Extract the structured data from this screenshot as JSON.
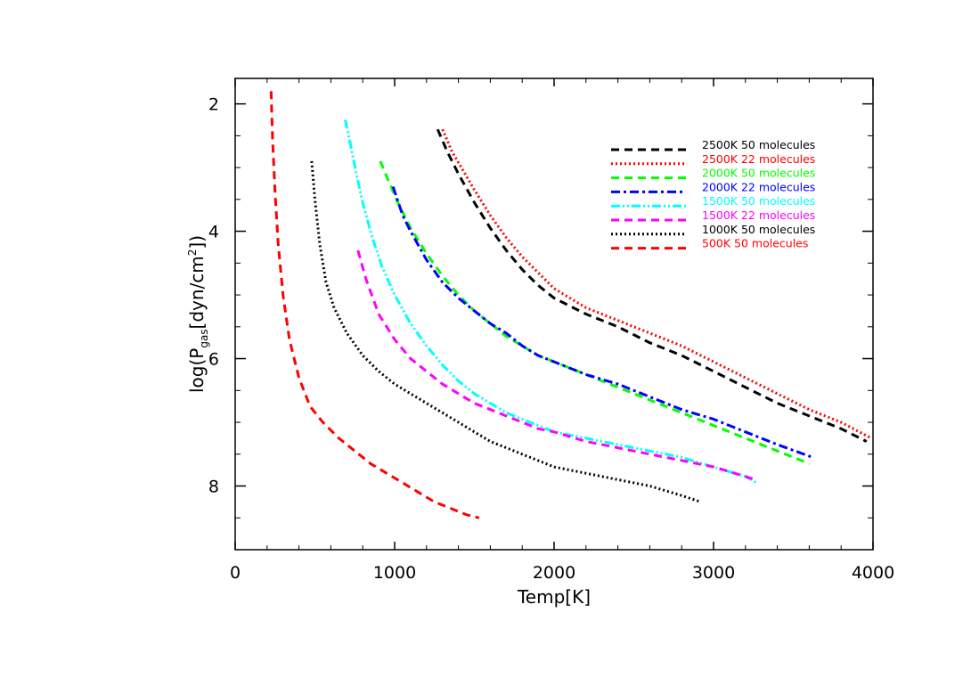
{
  "chart_data": {
    "type": "line",
    "title": "",
    "xlabel": "Temp[K]",
    "ylabel": {
      "prefix": "log(P",
      "subscript": "gas",
      "middle": "[dyn/cm",
      "superscript": "2",
      "suffix": "])"
    },
    "xlim": [
      0,
      4000
    ],
    "ylim": [
      9,
      1.6
    ],
    "y_inverted": true,
    "xticks": [
      0,
      1000,
      2000,
      3000,
      4000
    ],
    "xtick_labels": [
      "0",
      "1000",
      "2000",
      "3000",
      "4000"
    ],
    "yticks": [
      2,
      4,
      6,
      8
    ],
    "ytick_labels": [
      "2",
      "4",
      "6",
      "8"
    ],
    "legend_position": "top-right",
    "series": [
      {
        "name": "2500K 50 molecules",
        "color": "#000000",
        "dash": "dashed",
        "x": [
          1270,
          1330,
          1400,
          1500,
          1600,
          1700,
          1800,
          1900,
          2000,
          2200,
          2400,
          2600,
          2800,
          3000,
          3200,
          3400,
          3600,
          3800,
          3960
        ],
        "y": [
          2.4,
          2.75,
          3.1,
          3.55,
          3.95,
          4.3,
          4.6,
          4.85,
          5.05,
          5.3,
          5.5,
          5.75,
          5.95,
          6.2,
          6.45,
          6.7,
          6.9,
          7.1,
          7.3
        ]
      },
      {
        "name": "2500K 22 molecules",
        "color": "#ff0000",
        "dash": "dotted",
        "x": [
          1300,
          1360,
          1430,
          1500,
          1600,
          1700,
          1800,
          1900,
          2000,
          2200,
          2400,
          2600,
          2800,
          3000,
          3200,
          3400,
          3600,
          3800,
          3990
        ],
        "y": [
          2.4,
          2.75,
          3.05,
          3.35,
          3.75,
          4.1,
          4.4,
          4.65,
          4.9,
          5.2,
          5.4,
          5.6,
          5.8,
          6.05,
          6.3,
          6.55,
          6.8,
          7.0,
          7.25
        ]
      },
      {
        "name": "2000K 50 molecules",
        "color": "#00ff00",
        "dash": "dashed",
        "x": [
          910,
          960,
          1020,
          1100,
          1200,
          1300,
          1400,
          1500,
          1600,
          1700,
          1800,
          1900,
          2000,
          2200,
          2400,
          2600,
          2800,
          3000,
          3200,
          3400,
          3600
        ],
        "y": [
          2.9,
          3.2,
          3.55,
          3.95,
          4.35,
          4.7,
          5.0,
          5.25,
          5.45,
          5.65,
          5.8,
          5.95,
          6.05,
          6.25,
          6.45,
          6.65,
          6.85,
          7.05,
          7.25,
          7.45,
          7.65
        ]
      },
      {
        "name": "2000K 22 molecules",
        "color": "#0000ff",
        "dash": "dashdot",
        "x": [
          990,
          1050,
          1100,
          1200,
          1300,
          1400,
          1500,
          1600,
          1700,
          1800,
          1900,
          2000,
          2200,
          2400,
          2600,
          2800,
          3000,
          3200,
          3400,
          3620
        ],
        "y": [
          3.3,
          3.75,
          4.0,
          4.45,
          4.8,
          5.05,
          5.25,
          5.45,
          5.6,
          5.8,
          5.95,
          6.05,
          6.25,
          6.4,
          6.6,
          6.8,
          6.95,
          7.15,
          7.35,
          7.55
        ]
      },
      {
        "name": "1500K 50 molecules",
        "color": "#00ffff",
        "dash": "dashdotdot",
        "x": [
          690,
          720,
          760,
          800,
          860,
          920,
          1000,
          1100,
          1200,
          1300,
          1400,
          1500,
          1600,
          1700,
          1800,
          1900,
          2000,
          2200,
          2400,
          2600,
          2800,
          3000,
          3200,
          3270
        ],
        "y": [
          2.25,
          2.6,
          3.1,
          3.55,
          4.1,
          4.55,
          5.0,
          5.45,
          5.8,
          6.1,
          6.35,
          6.55,
          6.7,
          6.85,
          6.95,
          7.05,
          7.15,
          7.25,
          7.35,
          7.45,
          7.55,
          7.7,
          7.85,
          7.95
        ]
      },
      {
        "name": "1500K 22 molecules",
        "color": "#ff00ff",
        "dash": "dashed",
        "x": [
          770,
          820,
          900,
          1000,
          1100,
          1200,
          1300,
          1400,
          1500,
          1600,
          1700,
          1800,
          1900,
          2000,
          2200,
          2400,
          2600,
          2800,
          3000,
          3200,
          3260
        ],
        "y": [
          4.3,
          4.75,
          5.3,
          5.7,
          6.0,
          6.2,
          6.4,
          6.55,
          6.7,
          6.8,
          6.9,
          7.0,
          7.1,
          7.15,
          7.3,
          7.4,
          7.5,
          7.6,
          7.7,
          7.85,
          7.9
        ]
      },
      {
        "name": "1000K 50 molecules",
        "color": "#000000",
        "dash": "dotted",
        "x": [
          480,
          500,
          530,
          570,
          620,
          700,
          800,
          900,
          1000,
          1100,
          1200,
          1300,
          1400,
          1500,
          1600,
          1700,
          1800,
          1900,
          2000,
          2200,
          2400,
          2600,
          2800,
          2920
        ],
        "y": [
          2.9,
          3.5,
          4.2,
          4.8,
          5.2,
          5.6,
          5.95,
          6.2,
          6.4,
          6.55,
          6.7,
          6.85,
          7.0,
          7.15,
          7.3,
          7.4,
          7.5,
          7.6,
          7.7,
          7.8,
          7.9,
          8.0,
          8.15,
          8.25
        ]
      },
      {
        "name": "500K 50 molecules",
        "color": "#ff0000",
        "dash": "dashed",
        "x": [
          225,
          235,
          250,
          270,
          300,
          340,
          400,
          470,
          550,
          650,
          750,
          850,
          950,
          1050,
          1150,
          1250,
          1350,
          1450,
          1530
        ],
        "y": [
          1.8,
          2.6,
          3.4,
          4.2,
          5.0,
          5.7,
          6.3,
          6.75,
          7.0,
          7.25,
          7.45,
          7.65,
          7.8,
          7.95,
          8.1,
          8.25,
          8.35,
          8.45,
          8.5
        ]
      }
    ]
  }
}
